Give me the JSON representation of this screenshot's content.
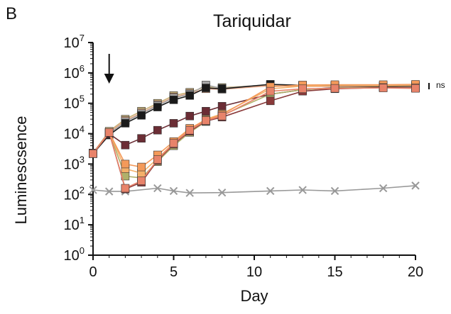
{
  "panel_label": "B",
  "chart_data": {
    "type": "line",
    "title": "Tariquidar",
    "xlabel": "Day",
    "ylabel": "Luminescsence",
    "xlim": [
      0,
      20
    ],
    "ylim": [
      1,
      10000000
    ],
    "yscale": "log",
    "x_ticks": [
      0,
      5,
      10,
      15,
      20
    ],
    "y_ticks": [
      {
        "base": "10",
        "exp": "0",
        "value": 1
      },
      {
        "base": "10",
        "exp": "1",
        "value": 10
      },
      {
        "base": "10",
        "exp": "2",
        "value": 100
      },
      {
        "base": "10",
        "exp": "3",
        "value": 1000
      },
      {
        "base": "10",
        "exp": "4",
        "value": 10000
      },
      {
        "base": "10",
        "exp": "5",
        "value": 100000
      },
      {
        "base": "10",
        "exp": "6",
        "value": 1000000
      },
      {
        "base": "10",
        "exp": "7",
        "value": 10000000
      }
    ],
    "grid": false,
    "legend": "none",
    "annotations": {
      "arrow_day": 1,
      "ns_label": "ns"
    },
    "series": [
      {
        "color": "#999999",
        "marker": "x",
        "x": [
          0,
          1,
          2,
          4,
          5,
          6,
          8,
          11,
          13,
          15,
          18,
          20
        ],
        "y": [
          140,
          125,
          125,
          160,
          130,
          112,
          115,
          130,
          140,
          130,
          160,
          195
        ]
      },
      {
        "color": "#c9b27a",
        "marker": "square",
        "x": [
          0,
          1,
          2,
          3,
          4,
          5,
          6,
          7,
          8,
          11,
          13,
          15,
          18,
          20
        ],
        "y": [
          2300,
          12000,
          30000,
          55000,
          100000,
          180000,
          230000,
          350000,
          330000,
          400000,
          380000,
          380000,
          370000,
          380000
        ]
      },
      {
        "color": "#e8a98a",
        "marker": "square",
        "x": [
          0,
          1,
          2,
          3,
          4,
          5,
          6,
          7,
          8,
          11,
          13,
          15,
          18,
          20
        ],
        "y": [
          2300,
          11000,
          27000,
          48000,
          90000,
          160000,
          210000,
          300000,
          290000,
          380000,
          360000,
          360000,
          350000,
          360000
        ]
      },
      {
        "color": "#a8a8a8",
        "marker": "square",
        "x": [
          0,
          1,
          2,
          3,
          4,
          5,
          6,
          7,
          8,
          11,
          13,
          15,
          18,
          20
        ],
        "y": [
          2200,
          10000,
          25000,
          45000,
          85000,
          150000,
          200000,
          400000,
          310000,
          420000,
          390000,
          370000,
          360000,
          370000
        ]
      },
      {
        "color": "#1a1a1a",
        "marker": "square",
        "x": [
          0,
          1,
          2,
          3,
          4,
          5,
          6,
          7,
          8,
          11,
          13,
          15,
          18,
          20
        ],
        "y": [
          2200,
          9000,
          22000,
          40000,
          75000,
          130000,
          180000,
          320000,
          300000,
          420000,
          390000,
          380000,
          360000,
          370000
        ]
      },
      {
        "color": "#6b2d35",
        "marker": "square",
        "x": [
          0,
          1,
          2,
          3,
          4,
          5,
          6,
          7,
          8,
          11,
          13,
          15,
          18,
          20
        ],
        "y": [
          2300,
          10000,
          4200,
          7000,
          13000,
          22000,
          38000,
          55000,
          80000,
          200000,
          280000,
          330000,
          330000,
          320000
        ]
      },
      {
        "color": "#b0b06a",
        "marker": "square",
        "x": [
          0,
          1,
          2,
          3,
          4,
          5,
          6,
          7,
          8,
          11,
          13,
          15,
          18,
          20
        ],
        "y": [
          2200,
          11000,
          400,
          350,
          1200,
          4000,
          11000,
          25000,
          40000,
          200000,
          280000,
          320000,
          330000,
          320000
        ]
      },
      {
        "color": "#f4b06a",
        "marker": "square",
        "x": [
          0,
          1,
          2,
          3,
          4,
          5,
          6,
          7,
          8,
          11,
          13,
          15,
          18,
          20
        ],
        "y": [
          2200,
          11000,
          700,
          500,
          1500,
          5000,
          14000,
          30000,
          45000,
          300000,
          370000,
          380000,
          380000,
          390000
        ]
      },
      {
        "color": "#f49a5a",
        "marker": "square",
        "x": [
          0,
          1,
          2,
          3,
          4,
          5,
          6,
          7,
          8,
          11,
          13,
          15,
          18,
          20
        ],
        "y": [
          2200,
          11000,
          1000,
          800,
          2000,
          5500,
          15000,
          28000,
          42000,
          350000,
          400000,
          410000,
          410000,
          420000
        ]
      },
      {
        "color": "#8a3a3a",
        "marker": "square",
        "x": [
          0,
          1,
          2,
          3,
          4,
          5,
          6,
          7,
          8,
          11,
          13,
          15,
          18,
          20
        ],
        "y": [
          2200,
          11000,
          150,
          250,
          1300,
          4500,
          12000,
          26000,
          35000,
          120000,
          250000,
          300000,
          330000,
          320000
        ]
      },
      {
        "color": "#e8836a",
        "marker": "square",
        "x": [
          0,
          1,
          2,
          3,
          4,
          5,
          6,
          7,
          8,
          11,
          13,
          15,
          18,
          20
        ],
        "y": [
          2200,
          11000,
          160,
          280,
          1400,
          4800,
          13000,
          27000,
          38000,
          250000,
          300000,
          310000,
          320000,
          310000
        ]
      }
    ]
  }
}
